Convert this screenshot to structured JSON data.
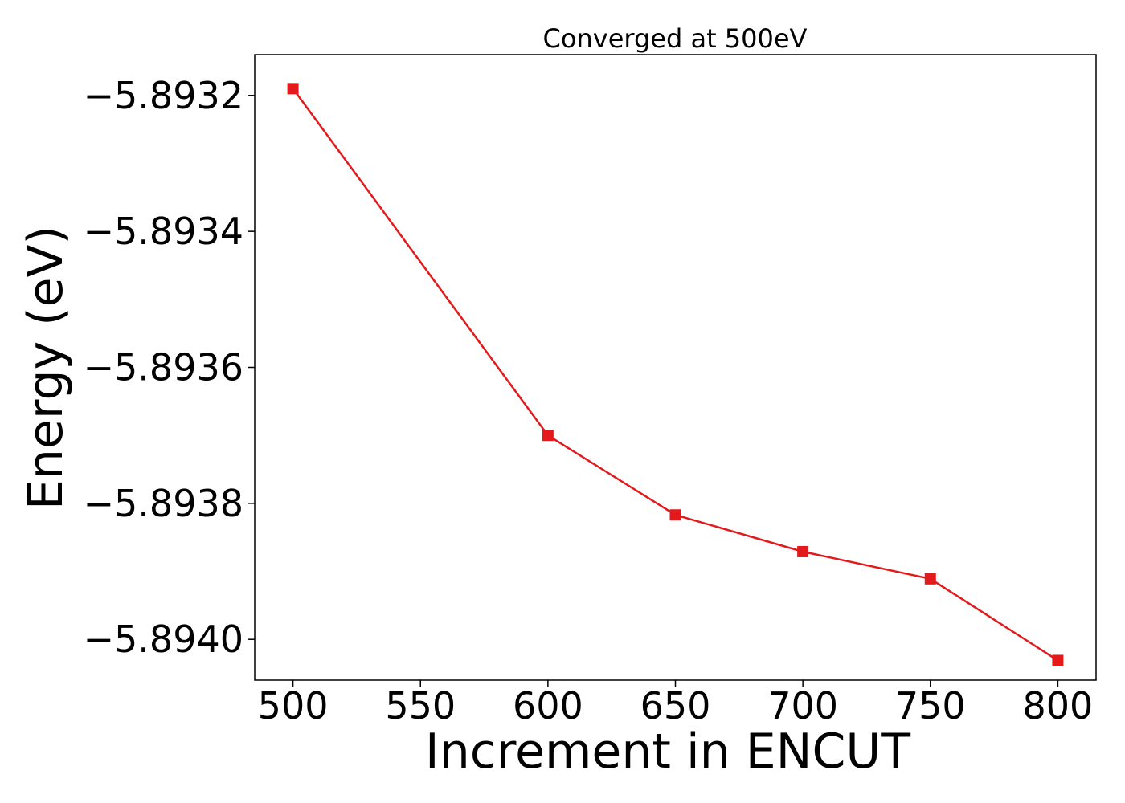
{
  "chart_data": {
    "type": "line",
    "title": "Converged at 500eV",
    "xlabel": "Increment in ENCUT",
    "ylabel": "Energy (eV)",
    "x": [
      500,
      600,
      650,
      700,
      750,
      800
    ],
    "series": [
      {
        "values": [
          -5.89319,
          -5.8937,
          -5.893817,
          -5.893871,
          -5.893911,
          -5.894031
        ],
        "color": "#e31a1c",
        "marker": "square"
      }
    ],
    "xlim": [
      485,
      815
    ],
    "ylim": [
      -5.89406,
      -5.89314
    ],
    "xticks": [
      500,
      550,
      600,
      650,
      700,
      750,
      800
    ],
    "xtick_labels": [
      "500",
      "550",
      "600",
      "650",
      "700",
      "750",
      "800"
    ],
    "yticks": [
      -5.8932,
      -5.8934,
      -5.8936,
      -5.8938,
      -5.894
    ],
    "ytick_labels": [
      "−5.8932",
      "−5.8934",
      "−5.8936",
      "−5.8938",
      "−5.8940"
    ],
    "grid": false,
    "legend": false
  }
}
